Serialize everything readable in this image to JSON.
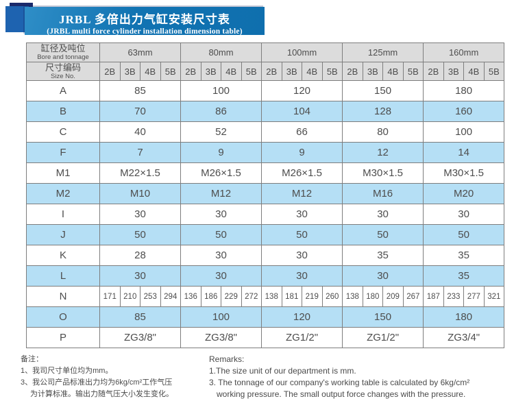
{
  "header": {
    "title_zh": "JRBL 多倍出力气缸安装尺寸表",
    "title_en": "(JRBL multi force cylinder installation dimension table)"
  },
  "table": {
    "corner": {
      "row1_zh": "缸径及吨位",
      "row1_en": "Bore and tonnage",
      "row2_zh": "尺寸编码",
      "row2_en": "Size No."
    },
    "sizes": [
      "63mm",
      "80mm",
      "100mm",
      "125mm",
      "160mm"
    ],
    "sub_columns": [
      "2B",
      "3B",
      "4B",
      "5B"
    ],
    "rows": [
      {
        "label": "A",
        "type": "merged",
        "shade": false,
        "values": [
          "85",
          "100",
          "120",
          "150",
          "180"
        ]
      },
      {
        "label": "B",
        "type": "merged",
        "shade": true,
        "values": [
          "70",
          "86",
          "104",
          "128",
          "160"
        ]
      },
      {
        "label": "C",
        "type": "merged",
        "shade": false,
        "values": [
          "40",
          "52",
          "66",
          "80",
          "100"
        ]
      },
      {
        "label": "F",
        "type": "merged",
        "shade": true,
        "values": [
          "7",
          "9",
          "9",
          "12",
          "14"
        ]
      },
      {
        "label": "M1",
        "type": "merged",
        "shade": false,
        "values": [
          "M22×1.5",
          "M26×1.5",
          "M26×1.5",
          "M30×1.5",
          "M30×1.5"
        ]
      },
      {
        "label": "M2",
        "type": "merged",
        "shade": true,
        "values": [
          "M10",
          "M12",
          "M12",
          "M16",
          "M20"
        ]
      },
      {
        "label": "I",
        "type": "merged",
        "shade": false,
        "values": [
          "30",
          "30",
          "30",
          "30",
          "30"
        ]
      },
      {
        "label": "J",
        "type": "merged",
        "shade": true,
        "values": [
          "50",
          "50",
          "50",
          "50",
          "50"
        ]
      },
      {
        "label": "K",
        "type": "merged",
        "shade": false,
        "values": [
          "28",
          "30",
          "30",
          "35",
          "35"
        ]
      },
      {
        "label": "L",
        "type": "merged",
        "shade": true,
        "values": [
          "30",
          "30",
          "30",
          "30",
          "35"
        ]
      },
      {
        "label": "N",
        "type": "per_column",
        "shade": false,
        "values": [
          [
            "171",
            "210",
            "253",
            "294"
          ],
          [
            "136",
            "186",
            "229",
            "272"
          ],
          [
            "138",
            "181",
            "219",
            "260"
          ],
          [
            "138",
            "180",
            "209",
            "267"
          ],
          [
            "187",
            "233",
            "277",
            "321"
          ]
        ]
      },
      {
        "label": "O",
        "type": "merged",
        "shade": true,
        "values": [
          "85",
          "100",
          "120",
          "150",
          "180"
        ]
      },
      {
        "label": "P",
        "type": "merged",
        "shade": false,
        "values": [
          "ZG3/8\"",
          "ZG3/8\"",
          "ZG1/2\"",
          "ZG1/2\"",
          "ZG3/4\""
        ]
      }
    ]
  },
  "notes": {
    "zh": {
      "lines": [
        {
          "text": "备注：",
          "indent": false
        },
        {
          "text": "1、我司尺寸单位均为mm。",
          "indent": false
        },
        {
          "text": "3、我公司产品标准出力均为6kg/cm²工作气压",
          "indent": false
        },
        {
          "text": "为计算标准。输出力随气压大小发生变化。",
          "indent": true
        }
      ]
    },
    "en": {
      "lines": [
        {
          "text": "Remarks:",
          "indent": false
        },
        {
          "text": "1.The size unit of our department is mm.",
          "indent": false
        },
        {
          "text": "3. The tonnage of our company's working table is calculated by 6kg/cm²",
          "indent": false
        },
        {
          "text": "working pressure. The small output force changes with the pressure.",
          "indent": true
        }
      ]
    }
  },
  "colors": {
    "banner_blue": "#1173b2",
    "banner_blue_light": "#2f8ec7",
    "logo_square_blue": "#1e63b0",
    "logo_square_navy": "#1a2a6b",
    "header_gray": "#dcdcdc",
    "row_blue": "#b5dff5",
    "border_gray": "#7d7d7d",
    "text_gray": "#4d4d4d"
  }
}
